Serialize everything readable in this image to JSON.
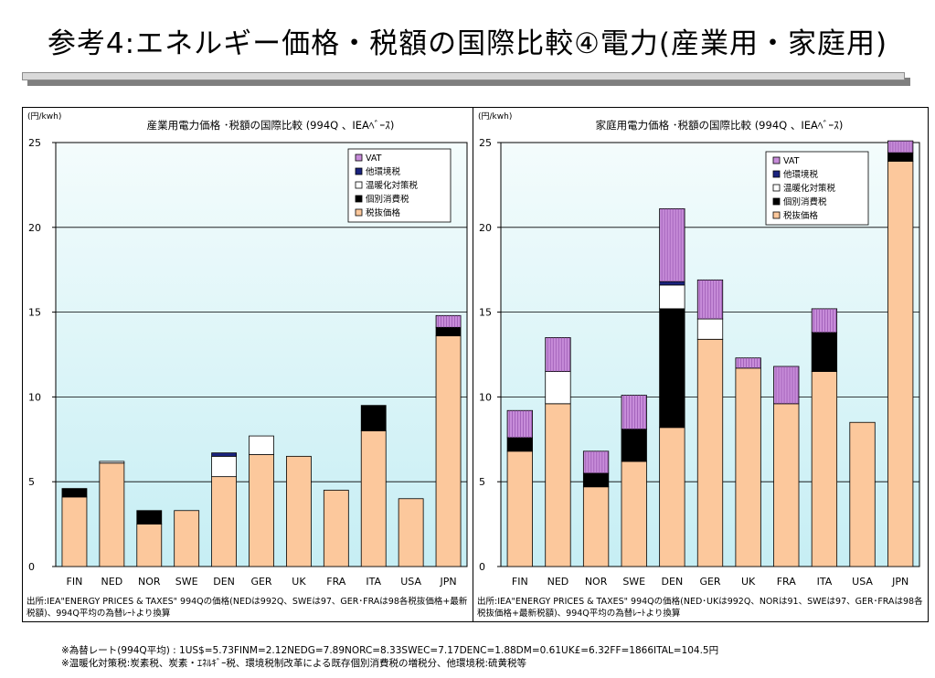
{
  "page": {
    "title": "参考4:エネルギー価格・税額の国際比較④電力(産業用・家庭用)",
    "footnotes": [
      "※為替レート(994Q平均) : 1US$=5.73FINM=2.12NEDG=7.89NORC=8.33SWEC=7.17DENC=1.88DM=0.61UK£=6.32FF=1866ITAL=104.5円",
      "※温暖化対策税:炭素税、炭素・ｴﾈﾙｷﾞｰ税、環境税制改革による既存個別消費税の増税分、他環境税:硫黄税等"
    ]
  },
  "colors": {
    "base": "#FCC89C",
    "excise": "#000000",
    "climate": "#FFFFFF",
    "other": "#1A237E",
    "vat": "#C78CD9",
    "plot_gradient_top": "#F4FCFC",
    "plot_gradient_bottom": "#C6EEF4"
  },
  "chart_data": [
    {
      "type": "bar",
      "stacked": true,
      "title": "産業用電力価格 ･税額の国際比較 (994Q 、IEAﾍﾞｰｽ)",
      "unit": "(円/kwh)",
      "ylim": [
        0,
        25
      ],
      "yticks": [
        0,
        5,
        10,
        15,
        20,
        25
      ],
      "grid": true,
      "legend_position": "top-right",
      "legend": [
        "VAT",
        "他環境税",
        "温暖化対策税",
        "個別消費税",
        "税抜価格"
      ],
      "categories": [
        "FIN",
        "NED",
        "NOR",
        "SWE",
        "DEN",
        "GER",
        "UK",
        "FRA",
        "ITA",
        "USA",
        "JPN"
      ],
      "series": [
        {
          "name": "税抜価格",
          "values": [
            4.1,
            6.1,
            2.5,
            3.3,
            5.3,
            6.6,
            6.5,
            4.5,
            8.0,
            4.0,
            13.6
          ]
        },
        {
          "name": "個別消費税",
          "values": [
            0.5,
            0,
            0.8,
            0,
            0,
            0,
            0,
            0,
            1.5,
            0,
            0.5
          ]
        },
        {
          "name": "温暖化対策税",
          "values": [
            0,
            0.1,
            0,
            0,
            1.2,
            1.1,
            0,
            0,
            0,
            0,
            0
          ]
        },
        {
          "name": "他環境税",
          "values": [
            0,
            0,
            0,
            0,
            0.2,
            0,
            0,
            0,
            0,
            0,
            0
          ]
        },
        {
          "name": "VAT",
          "values": [
            0,
            0,
            0,
            0,
            0,
            0,
            0,
            0,
            0,
            0,
            0.7
          ]
        }
      ],
      "source": "出所:IEA\"ENERGY PRICES & TAXES\" 994Qの価格(NEDは992Q、SWEは97、GER･FRAは98各税抜価格+最新税額)、994Q平均の為替ﾚｰﾄより換算"
    },
    {
      "type": "bar",
      "stacked": true,
      "title": "家庭用電力価格 ･税額の国際比較 (994Q 、IEAﾍﾞｰｽ)",
      "unit": "(円/kwh)",
      "ylim": [
        0,
        25
      ],
      "yticks": [
        0,
        5,
        10,
        15,
        20,
        25
      ],
      "grid": true,
      "legend_position": "top-right",
      "legend": [
        "VAT",
        "他環境税",
        "温暖化対策税",
        "個別消費税",
        "税抜価格"
      ],
      "categories": [
        "FIN",
        "NED",
        "NOR",
        "SWE",
        "DEN",
        "GER",
        "UK",
        "FRA",
        "ITA",
        "USA",
        "JPN"
      ],
      "series": [
        {
          "name": "税抜価格",
          "values": [
            6.8,
            9.6,
            4.7,
            6.2,
            8.2,
            13.4,
            11.7,
            9.6,
            11.5,
            8.5,
            23.9
          ]
        },
        {
          "name": "個別消費税",
          "values": [
            0.8,
            0,
            0.8,
            1.9,
            7.0,
            0,
            0,
            0,
            2.3,
            0,
            0.5
          ]
        },
        {
          "name": "温暖化対策税",
          "values": [
            0,
            1.9,
            0,
            0,
            1.4,
            1.2,
            0,
            0,
            0,
            0,
            0
          ]
        },
        {
          "name": "他環境税",
          "values": [
            0,
            0,
            0,
            0,
            0.2,
            0,
            0,
            0,
            0,
            0,
            0
          ]
        },
        {
          "name": "VAT",
          "values": [
            1.6,
            2.0,
            1.3,
            2.0,
            4.3,
            2.3,
            0.6,
            2.2,
            1.4,
            0,
            0.7
          ]
        }
      ],
      "source": "出所:IEA\"ENERGY PRICES & TAXES\" 994Qの価格(NED･UKは992Q、NORは91、SWEは97、GER･FRAは98各税抜価格+最新税額)、994Q平均の為替ﾚｰﾄより換算"
    }
  ]
}
